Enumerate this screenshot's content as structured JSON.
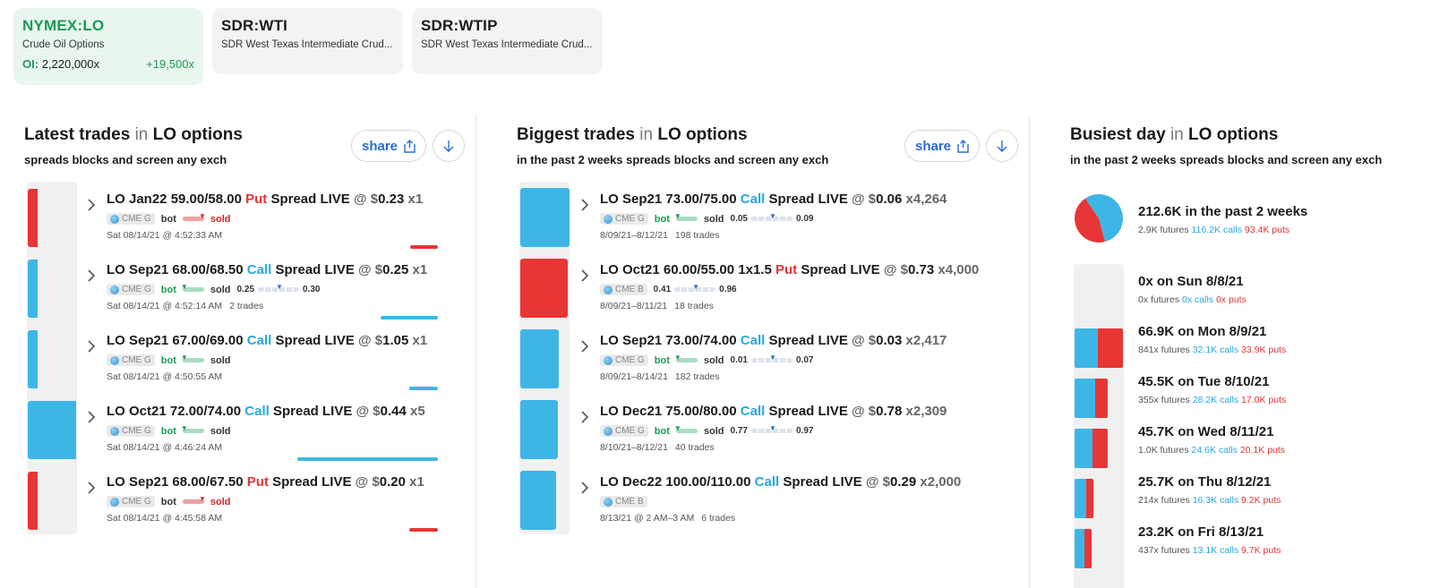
{
  "tiles": [
    {
      "symbol": "NYMEX:LO",
      "desc": "Crude Oil Options",
      "oi_label": "OI:",
      "oi_value": "2,220,000x",
      "oi_change": "+19,500x"
    },
    {
      "symbol": "SDR:WTI",
      "desc": "SDR West Texas Intermediate Crud..."
    },
    {
      "symbol": "SDR:WTIP",
      "desc": "SDR West Texas Intermediate Crud..."
    }
  ],
  "common": {
    "in": "in",
    "lo_options": "LO options",
    "share": "share"
  },
  "latest": {
    "title": "Latest trades",
    "subtitle": "spreads blocks and screen any exch",
    "trades": [
      {
        "name": "LO Jan22 59.00/58.00",
        "type": "Put",
        "rest": "Spread LIVE",
        "at": "@ $",
        "price": "0.23",
        "qty": "x1",
        "exch": "CME G",
        "bot": "bot",
        "sold": "sold",
        "time": "Sat 08/14/21 @ 4:52:33 AM",
        "trades": ""
      },
      {
        "name": "LO Sep21 68.00/68.50",
        "type": "Call",
        "rest": "Spread LIVE",
        "at": "@ $",
        "price": "0.25",
        "qty": "x1",
        "exch": "CME G",
        "bot": "bot",
        "sold": "sold",
        "rlo": "0.25",
        "rhi": "0.30",
        "time": "Sat 08/14/21 @ 4:52:14 AM",
        "trades": "2 trades"
      },
      {
        "name": "LO Sep21 67.00/69.00",
        "type": "Call",
        "rest": "Spread LIVE",
        "at": "@ $",
        "price": "1.05",
        "qty": "x1",
        "exch": "CME G",
        "bot": "bot",
        "sold": "sold",
        "time": "Sat 08/14/21 @ 4:50:55 AM",
        "trades": ""
      },
      {
        "name": "LO Oct21 72.00/74.00",
        "type": "Call",
        "rest": "Spread LIVE",
        "at": "@ $",
        "price": "0.44",
        "qty": "x5",
        "exch": "CME G",
        "bot": "bot",
        "sold": "sold",
        "time": "Sat 08/14/21 @ 4:46:24 AM",
        "trades": ""
      },
      {
        "name": "LO Sep21 68.00/67.50",
        "type": "Put",
        "rest": "Spread LIVE",
        "at": "@ $",
        "price": "0.20",
        "qty": "x1",
        "exch": "CME G",
        "bot": "bot",
        "sold": "sold",
        "time": "Sat 08/14/21 @ 4:45:58 AM",
        "trades": ""
      }
    ]
  },
  "biggest": {
    "title": "Biggest trades",
    "subtitle": "in the past 2 weeks spreads blocks and screen any exch",
    "trades": [
      {
        "name": "LO Sep21 73.00/75.00",
        "type": "Call",
        "rest": "Spread LIVE",
        "at": "@ $",
        "price": "0.06",
        "qty": "x4,264",
        "exch": "CME G",
        "bot": "bot",
        "sold": "sold",
        "rlo": "0.05",
        "rhi": "0.09",
        "time": "8/09/21–8/12/21",
        "trades": "198 trades"
      },
      {
        "name": "LO Oct21 60.00/55.00 1x1.5",
        "type": "Put",
        "rest": "Spread LIVE",
        "at": "@ $",
        "price": "0.73",
        "qty": "x4,000",
        "exch": "CME B",
        "rlo": "0.41",
        "rhi": "0.96",
        "time": "8/09/21–8/11/21",
        "trades": "18 trades"
      },
      {
        "name": "LO Sep21 73.00/74.00",
        "type": "Call",
        "rest": "Spread LIVE",
        "at": "@ $",
        "price": "0.03",
        "qty": "x2,417",
        "exch": "CME G",
        "bot": "bot",
        "sold": "sold",
        "rlo": "0.01",
        "rhi": "0.07",
        "time": "8/09/21–8/14/21",
        "trades": "182 trades"
      },
      {
        "name": "LO Dec21 75.00/80.00",
        "type": "Call",
        "rest": "Spread LIVE",
        "at": "@ $",
        "price": "0.78",
        "qty": "x2,309",
        "exch": "CME G",
        "bot": "bot",
        "sold": "sold",
        "rlo": "0.77",
        "rhi": "0.97",
        "time": "8/10/21–8/12/21",
        "trades": "40 trades"
      },
      {
        "name": "LO Dec22 100.00/110.00",
        "type": "Call",
        "rest": "Spread LIVE",
        "at": "@ $",
        "price": "0.29",
        "qty": "x2,000",
        "exch": "CME B",
        "time": "8/13/21 @ 2 AM–3 AM",
        "trades": "6 trades"
      }
    ]
  },
  "busiest": {
    "title": "Busiest day",
    "subtitle": "in the past 2 weeks spreads blocks and screen any exch",
    "summary": {
      "title": "212.6K in the past 2 weeks",
      "futures": "2.9K futures",
      "calls": "116.2K calls",
      "puts": "93.4K puts",
      "call_share": 0.554,
      "put_share": 0.446
    },
    "days": [
      {
        "title": "0x on Sun 8/8/21",
        "futures": "0x futures",
        "calls": "0x calls",
        "puts": "0x puts",
        "calls_k": 0,
        "puts_k": 0
      },
      {
        "title": "66.9K on Mon 8/9/21",
        "futures": "841x futures",
        "calls": "32.1K calls",
        "puts": "33.9K puts",
        "calls_k": 32.1,
        "puts_k": 33.9
      },
      {
        "title": "45.5K on Tue 8/10/21",
        "futures": "355x futures",
        "calls": "28.2K calls",
        "puts": "17.0K puts",
        "calls_k": 28.2,
        "puts_k": 17.0
      },
      {
        "title": "45.7K on Wed 8/11/21",
        "futures": "1.0K futures",
        "calls": "24.6K calls",
        "puts": "20.1K puts",
        "calls_k": 24.6,
        "puts_k": 20.1
      },
      {
        "title": "25.7K on Thu 8/12/21",
        "futures": "214x futures",
        "calls": "16.3K calls",
        "puts": "9.2K puts",
        "calls_k": 16.3,
        "puts_k": 9.2
      },
      {
        "title": "23.2K on Fri 8/13/21",
        "futures": "437x futures",
        "calls": "13.1K calls",
        "puts": "9.7K puts",
        "calls_k": 13.1,
        "puts_k": 9.7
      }
    ]
  },
  "colors": {
    "call": "#3db6e6",
    "put": "#e83535",
    "green": "#1a9a55",
    "link": "#2a6bd1"
  }
}
